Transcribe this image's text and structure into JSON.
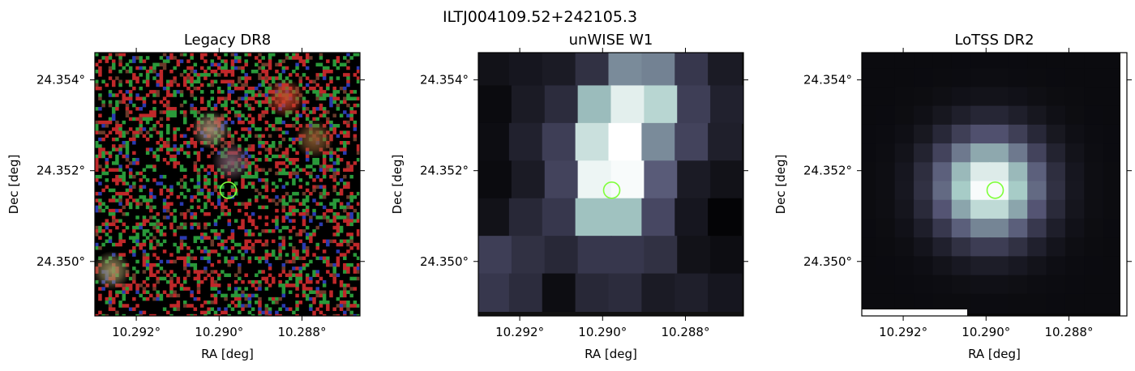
{
  "figure": {
    "title": "ILTJ004109.52+242105.3"
  },
  "chart_data": [
    {
      "type": "heatmap",
      "title": "Legacy DR8",
      "xlabel": "RA [deg]",
      "ylabel": "Dec [deg]",
      "xlim": [
        10.293,
        10.2866
      ],
      "ylim": [
        24.3488,
        24.3546
      ],
      "xticks": [
        10.292,
        10.29,
        10.288
      ],
      "xtick_labels": [
        "10.292°",
        "10.290°",
        "10.288°"
      ],
      "yticks": [
        24.354,
        24.352,
        24.35
      ],
      "ytick_labels": [
        "24.354°",
        "24.352°",
        "24.350°"
      ],
      "colormap": "rgb-composite",
      "image_description_colors": [
        "#000000",
        "#c0282a",
        "#2a9a3a",
        "#2a3ab0"
      ],
      "sources": [
        {
          "ra": 10.2884,
          "dec": 24.3536,
          "color": "#c8442a"
        },
        {
          "ra": 10.2902,
          "dec": 24.3529,
          "color": "#a08a70"
        },
        {
          "ra": 10.2877,
          "dec": 24.3527,
          "color": "#8a5a30"
        },
        {
          "ra": 10.2897,
          "dec": 24.3522,
          "color": "#7a5a6a"
        },
        {
          "ra": 10.2926,
          "dec": 24.3498,
          "color": "#9a9060"
        }
      ],
      "marker": {
        "ra": 10.28978,
        "dec": 24.35157,
        "shape": "circle",
        "color": "#7fff3a"
      }
    },
    {
      "type": "heatmap",
      "title": "unWISE W1",
      "xlabel": "RA [deg]",
      "ylabel": "Dec [deg]",
      "xlim": [
        10.293,
        10.2866
      ],
      "ylim": [
        24.3488,
        24.3546
      ],
      "xticks": [
        10.292,
        10.29,
        10.288
      ],
      "xtick_labels": [
        "10.292°",
        "10.290°",
        "10.288°"
      ],
      "yticks": [
        24.354,
        24.352,
        24.35
      ],
      "ytick_labels": [
        "24.354°",
        "24.352°",
        "24.350°"
      ],
      "colormap": "bone",
      "grid_values": [
        [
          0.08,
          0.1,
          0.12,
          0.22,
          0.55,
          0.52,
          0.25,
          0.12
        ],
        [
          0.05,
          0.12,
          0.2,
          0.7,
          0.92,
          0.8,
          0.28,
          0.15
        ],
        [
          0.06,
          0.15,
          0.28,
          0.85,
          1.0,
          0.55,
          0.3,
          0.14
        ],
        [
          0.05,
          0.12,
          0.3,
          0.95,
          0.98,
          0.4,
          0.12,
          0.08
        ],
        [
          0.08,
          0.18,
          0.25,
          0.72,
          0.72,
          0.32,
          0.1,
          0.02
        ],
        [
          0.28,
          0.22,
          0.18,
          0.25,
          0.25,
          0.22,
          0.08,
          0.06
        ],
        [
          0.25,
          0.2,
          0.06,
          0.18,
          0.2,
          0.12,
          0.14,
          0.1
        ]
      ],
      "marker": {
        "ra": 10.28978,
        "dec": 24.35157,
        "shape": "circle",
        "color": "#7fff3a"
      }
    },
    {
      "type": "heatmap",
      "title": "LoTSS DR2",
      "xlabel": "RA [deg]",
      "ylabel": "Dec [deg]",
      "xlim": [
        10.293,
        10.2866
      ],
      "ylim": [
        24.3488,
        24.3546
      ],
      "xticks": [
        10.292,
        10.29,
        10.288
      ],
      "xtick_labels": [
        "10.292°",
        "10.290°",
        "10.288°"
      ],
      "yticks": [
        24.354,
        24.352,
        24.35
      ],
      "ytick_labels": [
        "24.354°",
        "24.352°",
        "24.350°"
      ],
      "colormap": "bone",
      "peak": {
        "ra": 10.2898,
        "dec": 24.35157
      },
      "marker": {
        "ra": 10.28978,
        "dec": 24.35157,
        "shape": "circle",
        "color": "#7fff3a"
      }
    }
  ]
}
